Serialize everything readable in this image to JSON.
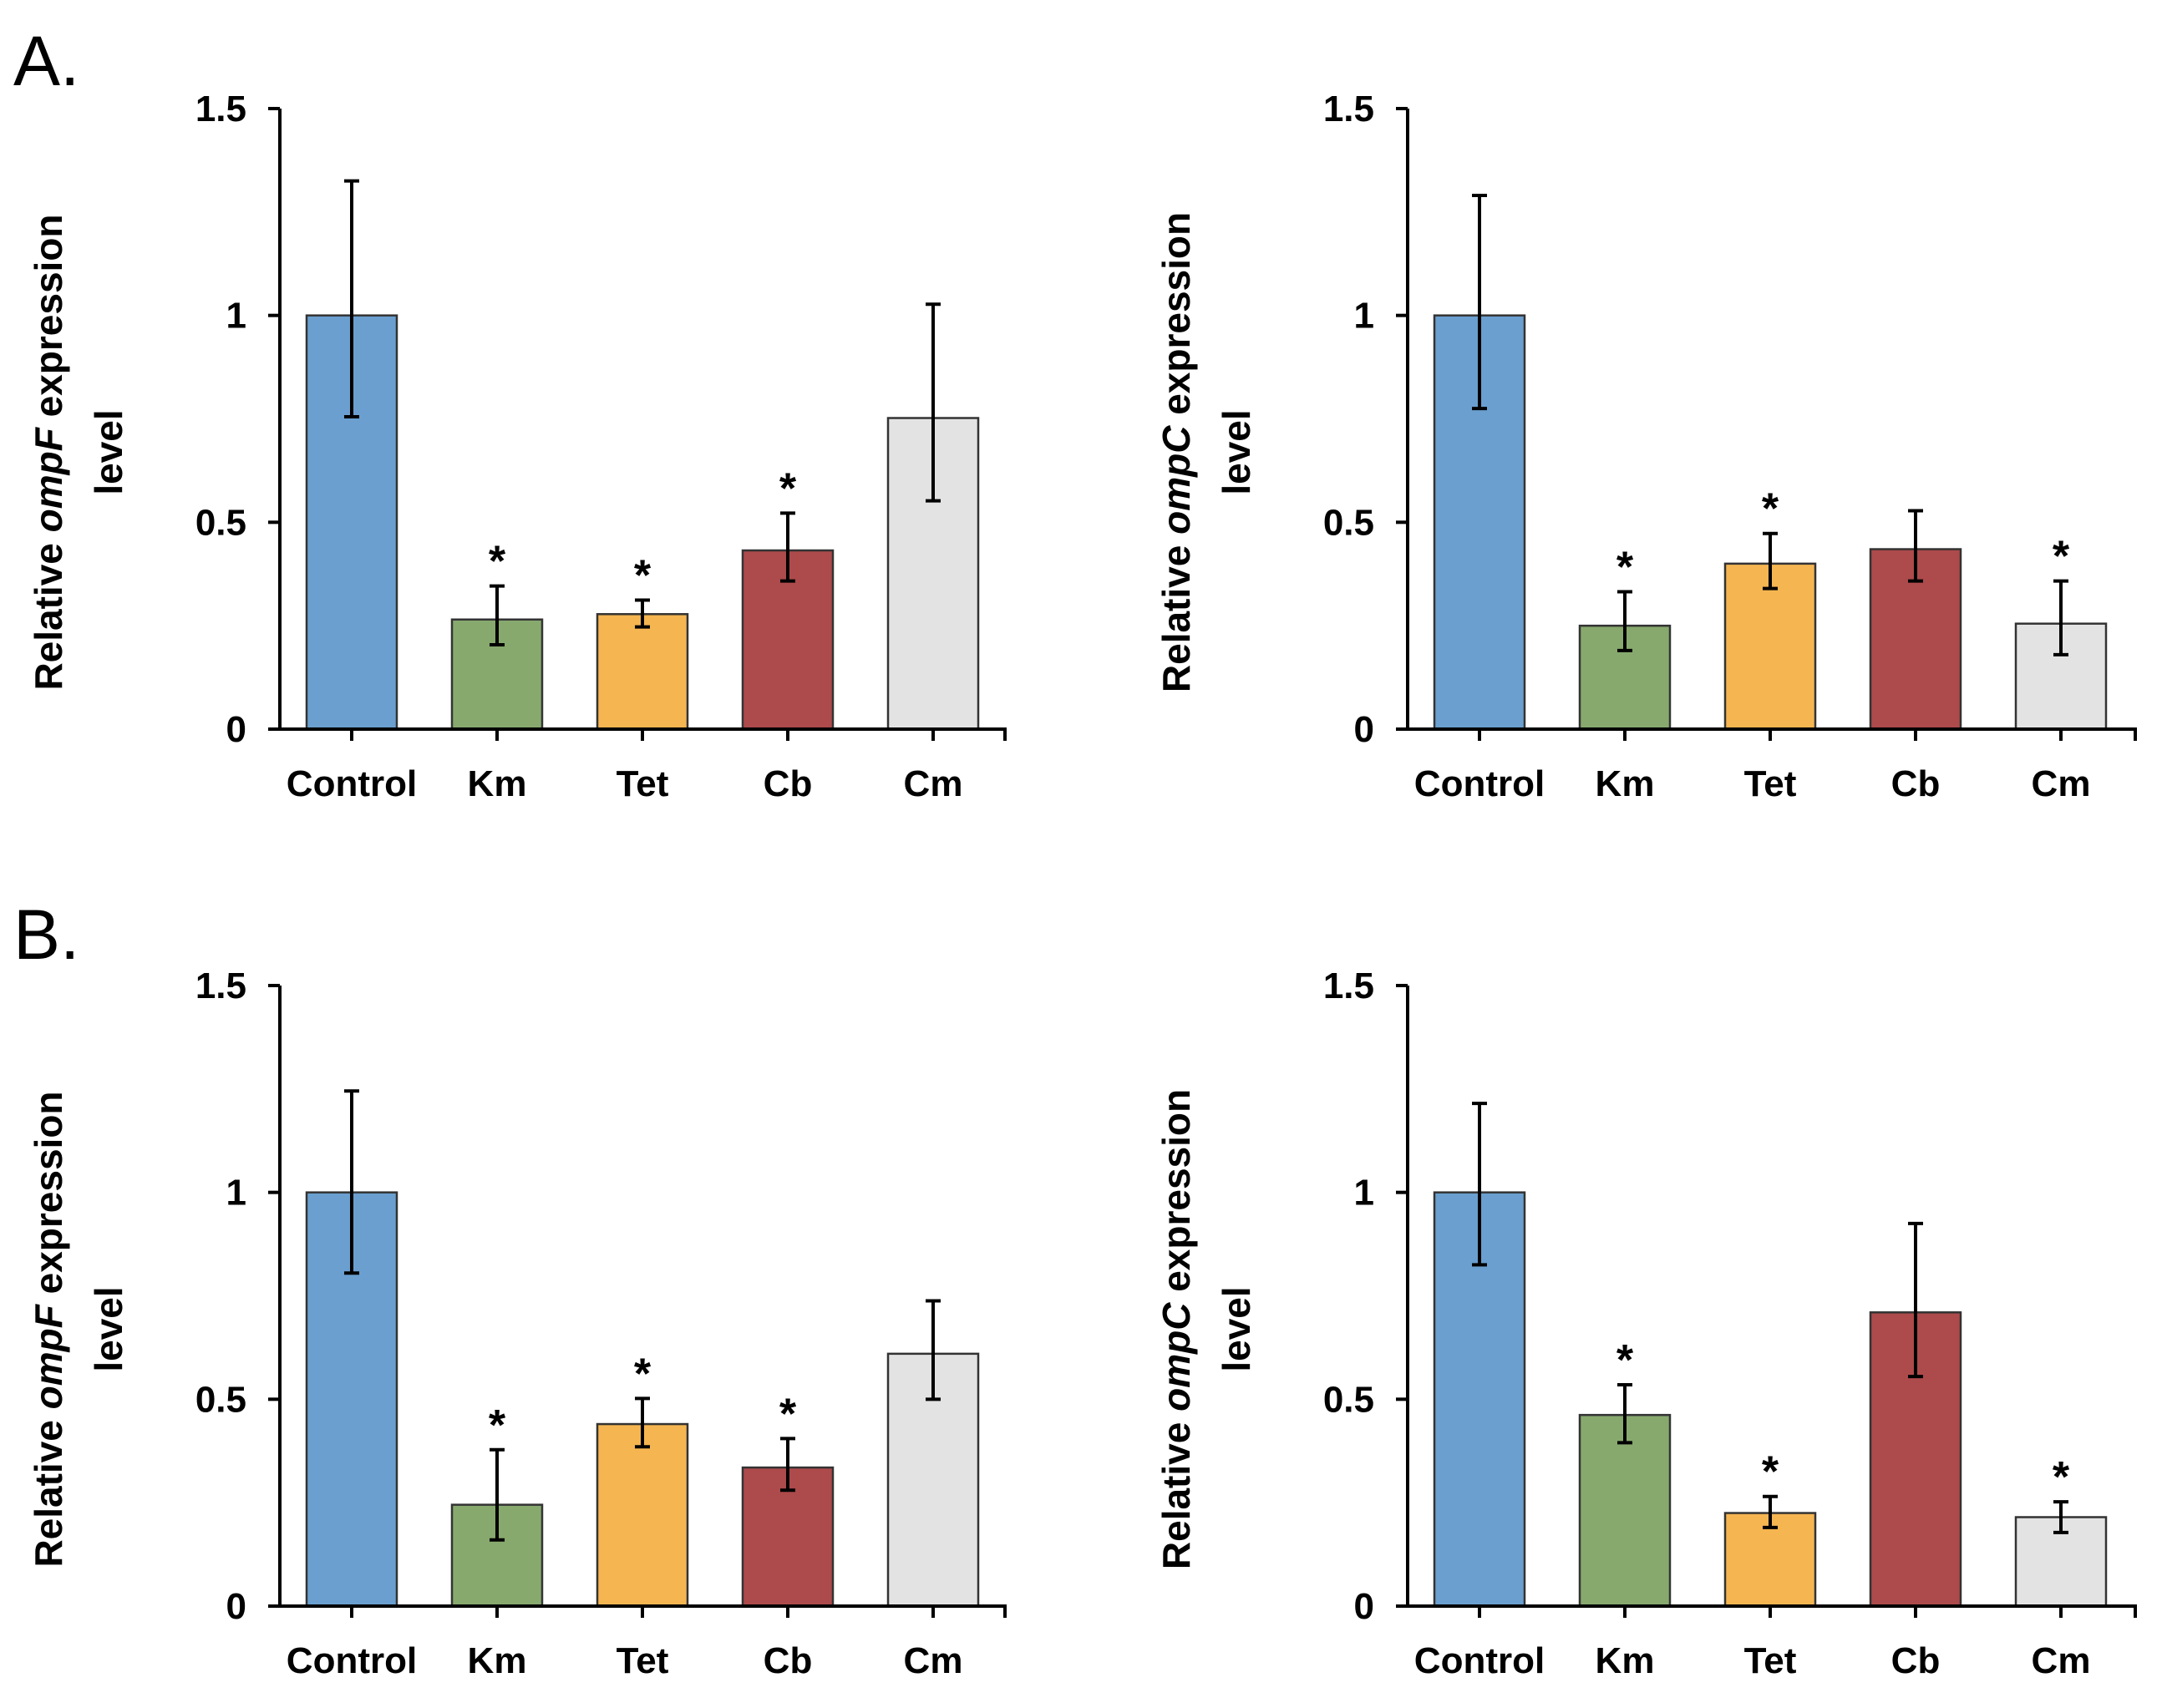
{
  "panels": [
    "A.",
    "B."
  ],
  "chart_data": [
    {
      "type": "bar",
      "panel": "A.",
      "ylabel_prefix": "Relative ",
      "ylabel_gene": "ompF",
      "ylabel_suffix": " expression",
      "ylabel_line2": "level",
      "ylim": [
        0,
        1.5
      ],
      "yticks": [
        "0",
        "0.5",
        "1",
        "1.5"
      ],
      "categories": [
        "Control",
        "Km",
        "Tet",
        "Cb",
        "Cm"
      ],
      "values": [
        1.0,
        0.265,
        0.278,
        0.432,
        0.752
      ],
      "errors_upper": [
        1.325,
        0.346,
        0.312,
        0.522,
        1.027
      ],
      "errors_lower": [
        0.755,
        0.204,
        0.247,
        0.358,
        0.552
      ],
      "significance": [
        "",
        "*",
        "*",
        "*",
        ""
      ],
      "colors": [
        "#6a9fcf",
        "#87a96e",
        "#f5b551",
        "#ad4a4b",
        "#e3e3e3"
      ]
    },
    {
      "type": "bar",
      "panel": "A.",
      "ylabel_prefix": "Relative ",
      "ylabel_gene": "ompC",
      "ylabel_suffix": " expression",
      "ylabel_line2": "level",
      "ylim": [
        0,
        1.5
      ],
      "yticks": [
        "0",
        "0.5",
        "1",
        "1.5"
      ],
      "categories": [
        "Control",
        "Km",
        "Tet",
        "Cb",
        "Cm"
      ],
      "values": [
        1.0,
        0.25,
        0.4,
        0.435,
        0.255
      ],
      "errors_upper": [
        1.29,
        0.332,
        0.473,
        0.528,
        0.358
      ],
      "errors_lower": [
        0.775,
        0.19,
        0.34,
        0.358,
        0.18
      ],
      "significance": [
        "",
        "*",
        "*",
        "",
        "*"
      ],
      "colors": [
        "#6a9fcf",
        "#87a96e",
        "#f5b551",
        "#ad4a4b",
        "#e3e3e3"
      ]
    },
    {
      "type": "bar",
      "panel": "B.",
      "ylabel_prefix": "Relative ",
      "ylabel_gene": "ompF",
      "ylabel_suffix": " expression",
      "ylabel_line2": "level",
      "ylim": [
        0,
        1.5
      ],
      "yticks": [
        "0",
        "0.5",
        "1",
        "1.5"
      ],
      "categories": [
        "Control",
        "Km",
        "Tet",
        "Cb",
        "Cm"
      ],
      "values": [
        1.0,
        0.245,
        0.44,
        0.335,
        0.61
      ],
      "errors_upper": [
        1.245,
        0.378,
        0.502,
        0.405,
        0.738
      ],
      "errors_lower": [
        0.805,
        0.16,
        0.385,
        0.28,
        0.5
      ],
      "significance": [
        "",
        "*",
        "*",
        "*",
        ""
      ],
      "colors": [
        "#6a9fcf",
        "#87a96e",
        "#f5b551",
        "#ad4a4b",
        "#e3e3e3"
      ]
    },
    {
      "type": "bar",
      "panel": "B.",
      "ylabel_prefix": "Relative ",
      "ylabel_gene": "ompC",
      "ylabel_suffix": " expression",
      "ylabel_line2": "level",
      "ylim": [
        0,
        1.5
      ],
      "yticks": [
        "0",
        "0.5",
        "1",
        "1.5"
      ],
      "categories": [
        "Control",
        "Km",
        "Tet",
        "Cb",
        "Cm"
      ],
      "values": [
        1.0,
        0.462,
        0.225,
        0.71,
        0.215
      ],
      "errors_upper": [
        1.215,
        0.535,
        0.265,
        0.925,
        0.252
      ],
      "errors_lower": [
        0.825,
        0.395,
        0.19,
        0.555,
        0.178
      ],
      "significance": [
        "",
        "*",
        "*",
        "",
        "*"
      ],
      "colors": [
        "#6a9fcf",
        "#87a96e",
        "#f5b551",
        "#ad4a4b",
        "#e3e3e3"
      ]
    }
  ]
}
